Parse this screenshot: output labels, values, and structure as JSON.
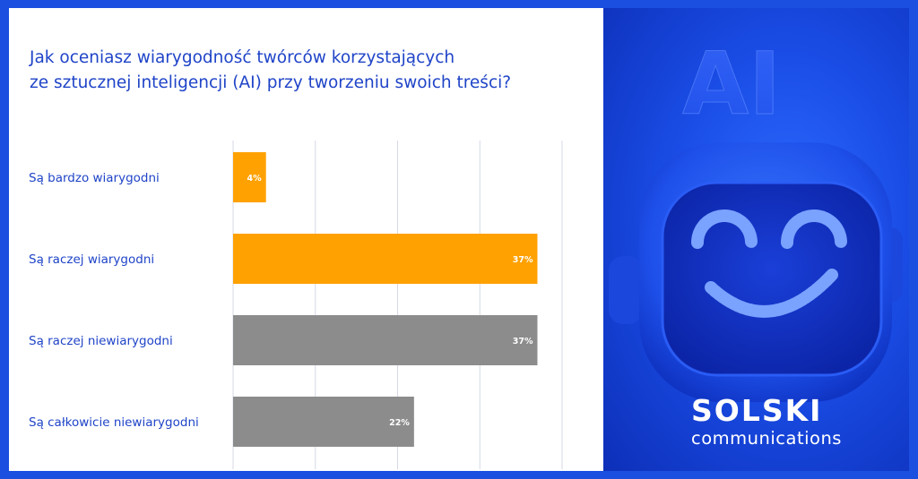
{
  "chart_data": {
    "type": "bar",
    "orientation": "horizontal",
    "title": "Jak oceniasz wiarygodność twórców korzystających ze sztucznej inteligencji (AI) przy tworzeniu swoich treści?",
    "title_lines": [
      "Jak oceniasz wiarygodność twórców korzystających",
      "ze sztucznej inteligencji (AI) przy tworzeniu swoich treści?"
    ],
    "categories": [
      "Są bardzo wiarygodni",
      "Są raczej wiarygodni",
      "Są raczej niewiarygodni",
      "Są całkowicie niewiarygodni"
    ],
    "values": [
      4,
      37,
      37,
      22
    ],
    "value_labels": [
      "4%",
      "37%",
      "37%",
      "22%"
    ],
    "bar_colors": [
      "#ffa100",
      "#ffa100",
      "#8c8c8c",
      "#8c8c8c"
    ],
    "xlim": [
      0,
      40
    ],
    "grid": true,
    "legend": "none"
  },
  "brand": {
    "name": "SOLSKI",
    "sub": "communications",
    "icon": "robot-smile-icon",
    "ai_text": "AI"
  },
  "colors": {
    "accent_blue": "#1f44c8",
    "panel_blue": "#1a4fe0",
    "orange": "#ffa100",
    "gray": "#8c8c8c"
  }
}
